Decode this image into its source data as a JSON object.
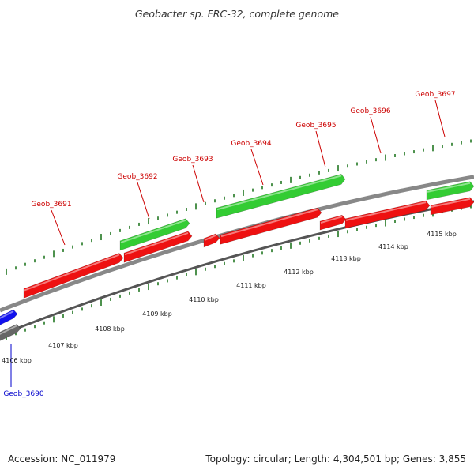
{
  "title": "Geobacter sp. FRC-32, complete genome",
  "footer": {
    "accession": "Accession: NC_011979",
    "summary": "Topology: circular; Length: 4,304,501 bp; Genes: 3,855"
  },
  "colors": {
    "forward_gene": "#ee1111",
    "reverse_gene": "#33cc33",
    "other_gene": "#1111ee",
    "backbone": "#888888",
    "tick": "#227722",
    "label_red": "#cc0000",
    "label_blue": "#0000cc"
  },
  "genes": [
    {
      "name": "Geob_3690",
      "strand": "other",
      "label_color": "label_blue"
    },
    {
      "name": "Geob_3691",
      "strand": "forward",
      "label_color": "label_red"
    },
    {
      "name": "Geob_3692",
      "strand": "reverse",
      "label_color": "label_red"
    },
    {
      "name": "Geob_3693",
      "strand": "forward",
      "label_color": "label_red"
    },
    {
      "name": "Geob_3694",
      "strand": "reverse",
      "label_color": "label_red"
    },
    {
      "name": "Geob_3695",
      "strand": "forward",
      "label_color": "label_red"
    },
    {
      "name": "Geob_3696",
      "strand": "forward",
      "label_color": "label_red"
    },
    {
      "name": "Geob_3697",
      "strand": "reverse",
      "label_color": "label_red"
    }
  ],
  "kbp_labels": [
    "4106 kbp",
    "4107 kbp",
    "4108 kbp",
    "4109 kbp",
    "4110 kbp",
    "4111 kbp",
    "4112 kbp",
    "4113 kbp",
    "4114 kbp",
    "4115 kbp"
  ]
}
